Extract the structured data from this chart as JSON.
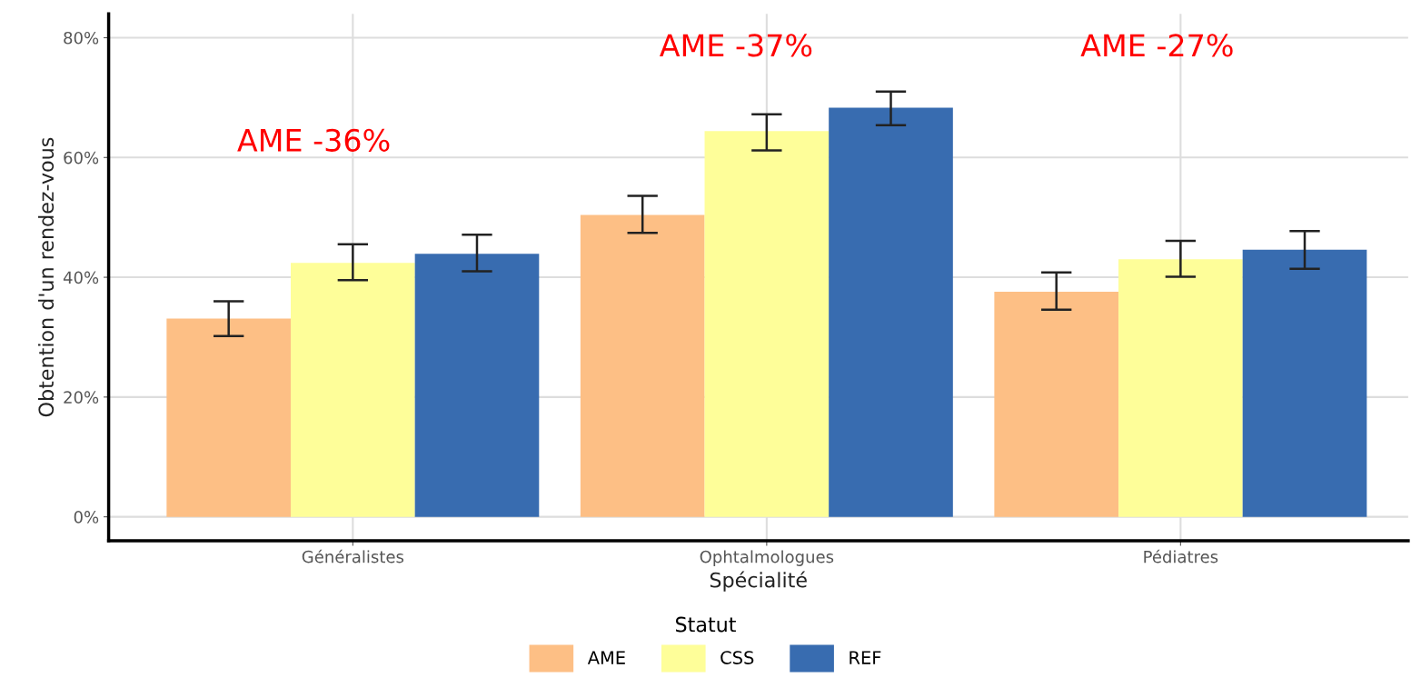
{
  "chart_data": {
    "type": "bar",
    "xlabel": "Spécialité",
    "ylabel": "Obtention d'un rendez-vous",
    "legend_title": "Statut",
    "categories": [
      "Généralistes",
      "Ophtalmologues",
      "Pédiatres"
    ],
    "series": [
      {
        "name": "AME",
        "color": "#fdbf85",
        "values": [
          33.1,
          50.4,
          37.6
        ],
        "errors": [
          [
            30.2,
            36.0
          ],
          [
            47.4,
            53.6
          ],
          [
            34.6,
            40.8
          ]
        ]
      },
      {
        "name": "CSS",
        "color": "#fefe99",
        "values": [
          42.4,
          64.4,
          43.0
        ],
        "errors": [
          [
            39.5,
            45.5
          ],
          [
            61.2,
            67.2
          ],
          [
            40.1,
            46.1
          ]
        ]
      },
      {
        "name": "REF",
        "color": "#386cb0",
        "values": [
          43.9,
          68.3,
          44.6
        ],
        "errors": [
          [
            41.0,
            47.1
          ],
          [
            65.4,
            71.0
          ],
          [
            41.4,
            47.7
          ]
        ]
      }
    ],
    "ylim": [
      -4,
      84
    ],
    "yticks": [
      {
        "value": 0,
        "label": "0%"
      },
      {
        "value": 20,
        "label": "20%"
      },
      {
        "value": 40,
        "label": "40%"
      },
      {
        "value": 60,
        "label": "60%"
      },
      {
        "value": 80,
        "label": "80%"
      }
    ],
    "annotations": [
      "AME -36%",
      "AME -37%",
      "AME -27%"
    ],
    "grid": true,
    "legend": "bottom"
  }
}
